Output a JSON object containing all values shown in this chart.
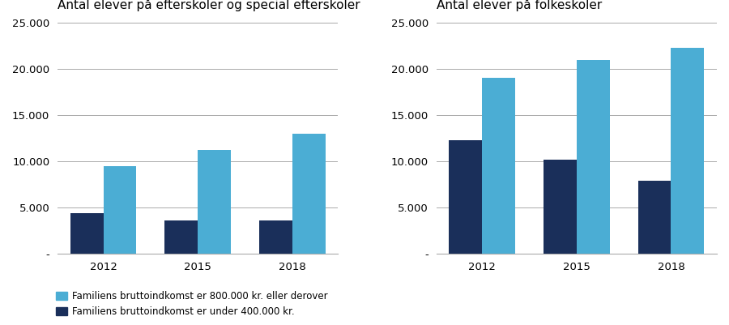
{
  "chart1": {
    "title": "Antal elever på efterskoler og special efterskoler",
    "years": [
      "2012",
      "2015",
      "2018"
    ],
    "high_income": [
      9500,
      11200,
      13000
    ],
    "low_income": [
      4400,
      3600,
      3600
    ],
    "ylim": [
      0,
      25000
    ],
    "yticks": [
      0,
      5000,
      10000,
      15000,
      20000,
      25000
    ]
  },
  "chart2": {
    "title": "Antal elever på folkeskoler",
    "years": [
      "2012",
      "2015",
      "2018"
    ],
    "high_income": [
      19000,
      21000,
      22300
    ],
    "low_income": [
      12300,
      10200,
      7900
    ],
    "ylim": [
      0,
      25000
    ],
    "yticks": [
      0,
      5000,
      10000,
      15000,
      20000,
      25000
    ]
  },
  "legend": {
    "label_high": "Familiens bruttoindkomst er 800.000 kr. eller derover",
    "label_low": "Familiens bruttoindkomst er under 400.000 kr."
  },
  "color_high": "#4BADD4",
  "color_low": "#1A2F5A",
  "bar_width": 0.35,
  "background_color": "#ffffff",
  "font_family": "Arial"
}
